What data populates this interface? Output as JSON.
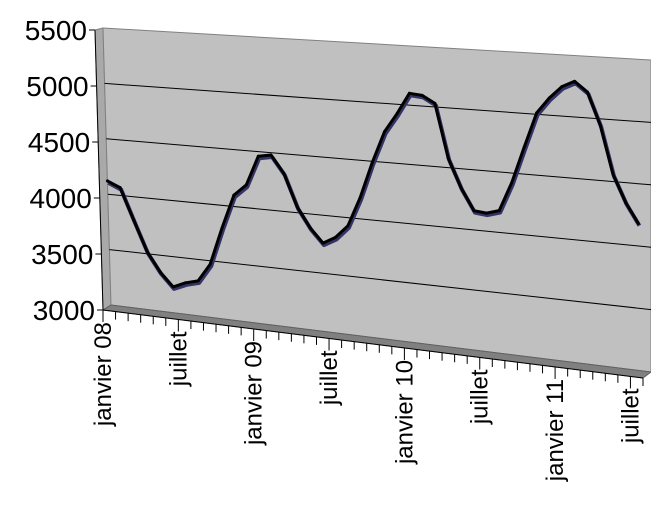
{
  "chart_data": {
    "type": "line",
    "title": "",
    "xlabel": "",
    "ylabel": "",
    "ylim": [
      3000,
      5500
    ],
    "y_ticks": [
      "3000",
      "3500",
      "4000",
      "4500",
      "5000",
      "5500"
    ],
    "x_tick_labels": [
      "janvier 08",
      "juillet",
      "janvier 09",
      "juillet",
      "janvier 10",
      "juillet",
      "janvier 11",
      "juillet"
    ],
    "x_tick_label_months": [
      0,
      6,
      12,
      18,
      24,
      30,
      36,
      42
    ],
    "perspective": "3d",
    "grid": true,
    "legend": "none",
    "colors": {
      "plot_area": "#c0c0c0",
      "side_wall": "#a9a9a9",
      "line": "#000000",
      "line_alt": "#333366"
    },
    "series": [
      {
        "x": [
          "janv. 08",
          "févr. 08",
          "mars 08",
          "avr. 08",
          "mai 08",
          "juin 08",
          "juil. 08",
          "août 08",
          "sept. 08",
          "oct. 08",
          "nov. 08",
          "déc. 08",
          "janv. 09",
          "févr. 09",
          "mars 09",
          "avr. 09",
          "mai 09",
          "juin 09",
          "juil. 09",
          "août 09",
          "sept. 09",
          "oct. 09",
          "nov. 09",
          "déc. 09",
          "janv. 10",
          "févr. 10",
          "mars 10",
          "avr. 10",
          "mai 10",
          "juin 10",
          "juil. 10",
          "août 10",
          "sept. 10",
          "oct. 10",
          "nov. 10",
          "déc. 10",
          "janv. 11",
          "févr. 11",
          "mars 11",
          "avr. 11",
          "mai 11",
          "juin 11",
          "juil. 11"
        ],
        "values": [
          4120,
          4070,
          3790,
          3520,
          3350,
          3230,
          3280,
          3310,
          3470,
          3800,
          4100,
          4200,
          4460,
          4480,
          4330,
          4050,
          3880,
          3760,
          3820,
          3930,
          4180,
          4490,
          4760,
          4920,
          5100,
          5090,
          5030,
          4580,
          4340,
          4160,
          4150,
          4180,
          4420,
          4720,
          5010,
          5140,
          5240,
          5290,
          5210,
          4950,
          4560,
          4340,
          4180
        ]
      }
    ]
  }
}
